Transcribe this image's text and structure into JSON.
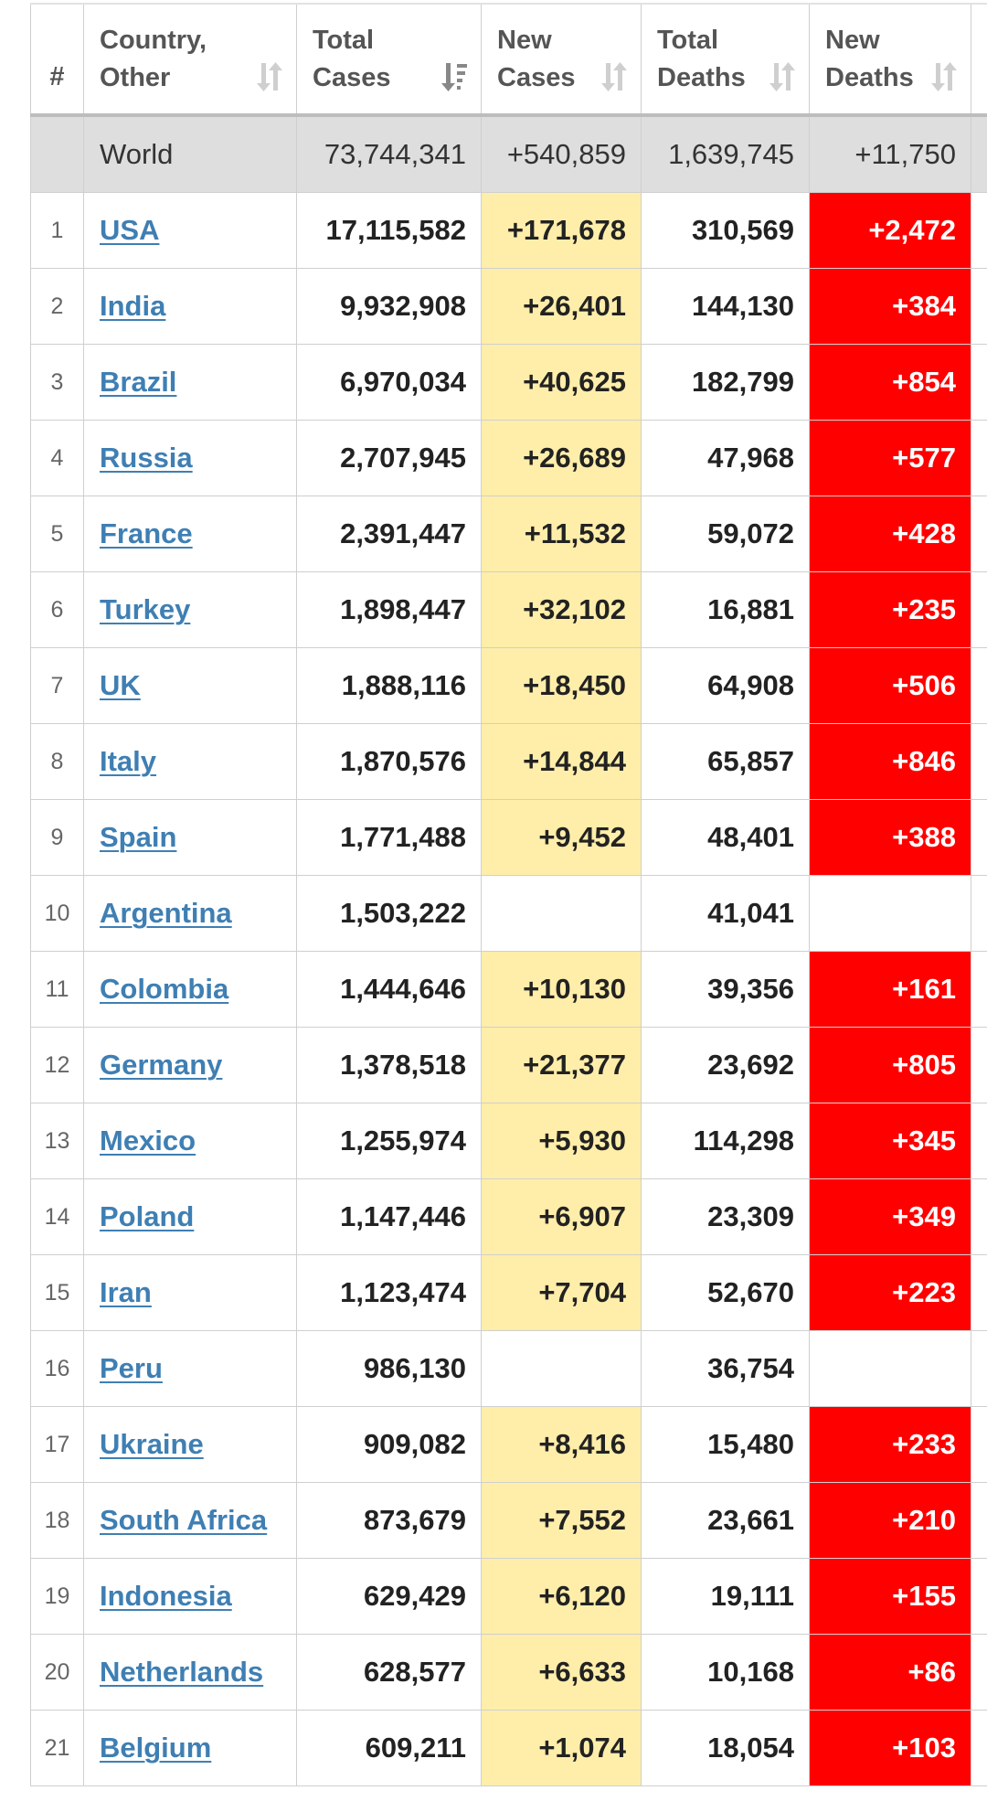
{
  "headers": {
    "num": "#",
    "country_l1": "Country,",
    "country_l2": "Other",
    "total_l1": "Total",
    "total_l2": "Cases",
    "new_l1": "New",
    "new_l2": "Cases",
    "deaths_l1": "Total",
    "deaths_l2": "Deaths",
    "newdeaths_l1": "New",
    "newdeaths_l2": "Deaths"
  },
  "icons": {
    "sort_default": "sort-updown-icon",
    "sort_active": "sort-descending-icon"
  },
  "colors": {
    "new_cases_highlight": "#ffeeaa",
    "new_deaths_highlight": "#ff0000",
    "link": "#3f7fb3",
    "world_row": "#dedede"
  },
  "world": {
    "country": "World",
    "total_cases": "73,744,341",
    "new_cases": "+540,859",
    "total_deaths": "1,639,745",
    "new_deaths": "+11,750"
  },
  "rows": [
    {
      "num": "1",
      "country": "USA",
      "total_cases": "17,115,582",
      "new_cases": "+171,678",
      "total_deaths": "310,569",
      "new_deaths": "+2,472"
    },
    {
      "num": "2",
      "country": "India",
      "total_cases": "9,932,908",
      "new_cases": "+26,401",
      "total_deaths": "144,130",
      "new_deaths": "+384"
    },
    {
      "num": "3",
      "country": "Brazil",
      "total_cases": "6,970,034",
      "new_cases": "+40,625",
      "total_deaths": "182,799",
      "new_deaths": "+854"
    },
    {
      "num": "4",
      "country": "Russia",
      "total_cases": "2,707,945",
      "new_cases": "+26,689",
      "total_deaths": "47,968",
      "new_deaths": "+577"
    },
    {
      "num": "5",
      "country": "France",
      "total_cases": "2,391,447",
      "new_cases": "+11,532",
      "total_deaths": "59,072",
      "new_deaths": "+428"
    },
    {
      "num": "6",
      "country": "Turkey",
      "total_cases": "1,898,447",
      "new_cases": "+32,102",
      "total_deaths": "16,881",
      "new_deaths": "+235"
    },
    {
      "num": "7",
      "country": "UK",
      "total_cases": "1,888,116",
      "new_cases": "+18,450",
      "total_deaths": "64,908",
      "new_deaths": "+506"
    },
    {
      "num": "8",
      "country": "Italy",
      "total_cases": "1,870,576",
      "new_cases": "+14,844",
      "total_deaths": "65,857",
      "new_deaths": "+846"
    },
    {
      "num": "9",
      "country": "Spain",
      "total_cases": "1,771,488",
      "new_cases": "+9,452",
      "total_deaths": "48,401",
      "new_deaths": "+388"
    },
    {
      "num": "10",
      "country": "Argentina",
      "total_cases": "1,503,222",
      "new_cases": "",
      "total_deaths": "41,041",
      "new_deaths": ""
    },
    {
      "num": "11",
      "country": "Colombia",
      "total_cases": "1,444,646",
      "new_cases": "+10,130",
      "total_deaths": "39,356",
      "new_deaths": "+161"
    },
    {
      "num": "12",
      "country": "Germany",
      "total_cases": "1,378,518",
      "new_cases": "+21,377",
      "total_deaths": "23,692",
      "new_deaths": "+805"
    },
    {
      "num": "13",
      "country": "Mexico",
      "total_cases": "1,255,974",
      "new_cases": "+5,930",
      "total_deaths": "114,298",
      "new_deaths": "+345"
    },
    {
      "num": "14",
      "country": "Poland",
      "total_cases": "1,147,446",
      "new_cases": "+6,907",
      "total_deaths": "23,309",
      "new_deaths": "+349"
    },
    {
      "num": "15",
      "country": "Iran",
      "total_cases": "1,123,474",
      "new_cases": "+7,704",
      "total_deaths": "52,670",
      "new_deaths": "+223"
    },
    {
      "num": "16",
      "country": "Peru",
      "total_cases": "986,130",
      "new_cases": "",
      "total_deaths": "36,754",
      "new_deaths": ""
    },
    {
      "num": "17",
      "country": "Ukraine",
      "total_cases": "909,082",
      "new_cases": "+8,416",
      "total_deaths": "15,480",
      "new_deaths": "+233"
    },
    {
      "num": "18",
      "country": "South Africa",
      "total_cases": "873,679",
      "new_cases": "+7,552",
      "total_deaths": "23,661",
      "new_deaths": "+210"
    },
    {
      "num": "19",
      "country": "Indonesia",
      "total_cases": "629,429",
      "new_cases": "+6,120",
      "total_deaths": "19,111",
      "new_deaths": "+155"
    },
    {
      "num": "20",
      "country": "Netherlands",
      "total_cases": "628,577",
      "new_cases": "+6,633",
      "total_deaths": "10,168",
      "new_deaths": "+86"
    },
    {
      "num": "21",
      "country": "Belgium",
      "total_cases": "609,211",
      "new_cases": "+1,074",
      "total_deaths": "18,054",
      "new_deaths": "+103"
    }
  ]
}
